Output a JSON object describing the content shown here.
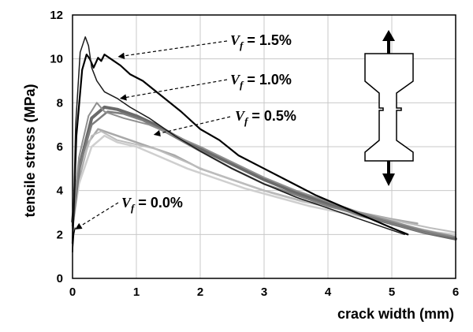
{
  "chart_data": {
    "type": "line",
    "xlabel": "crack width (mm)",
    "ylabel": "tensile stress (MPa)",
    "xlim": [
      0,
      6
    ],
    "ylim": [
      0,
      12
    ],
    "x_ticks": [
      "0",
      "1",
      "2",
      "3",
      "4",
      "5",
      "6"
    ],
    "y_ticks": [
      "0",
      "2",
      "4",
      "6",
      "8",
      "10",
      "12"
    ],
    "grid": true,
    "annotations": [
      {
        "var": "V",
        "sub": "f",
        "text": " = 1.5%",
        "target": [
          0.72,
          10.1
        ]
      },
      {
        "var": "V",
        "sub": "f",
        "text": " = 1.0%",
        "target": [
          0.75,
          8.2
        ]
      },
      {
        "var": "V",
        "sub": "f",
        "text": " = 0.5%",
        "target": [
          1.28,
          6.55
        ]
      },
      {
        "var": "V",
        "sub": "f",
        "text": " = 0.0%",
        "target": [
          0.05,
          2.25
        ]
      }
    ],
    "series": [
      {
        "group": "1.5%",
        "color": "#000000",
        "width": 2.2,
        "x": [
          0,
          0.06,
          0.15,
          0.22,
          0.27,
          0.33,
          0.4,
          0.45,
          0.5,
          0.6,
          0.75,
          0.9,
          1.1,
          1.4,
          1.7,
          2.0,
          2.3,
          2.6,
          3.0,
          3.4,
          3.8,
          4.2,
          4.6,
          5.0,
          5.25
        ],
        "y": [
          1.6,
          6.5,
          9.5,
          10.2,
          10.0,
          9.6,
          10.05,
          9.9,
          10.2,
          10.0,
          9.7,
          9.3,
          9.0,
          8.3,
          7.6,
          6.8,
          6.3,
          5.6,
          5.0,
          4.4,
          3.8,
          3.3,
          2.8,
          2.3,
          2.0
        ]
      },
      {
        "group": "1.5%",
        "color": "#1a1a1a",
        "width": 1.5,
        "x": [
          0,
          0.05,
          0.12,
          0.2,
          0.25,
          0.3,
          0.38,
          0.5,
          0.7,
          0.9,
          1.2,
          1.6,
          2.0,
          2.5,
          3.0,
          3.5,
          4.0,
          4.5,
          5.0,
          5.2
        ],
        "y": [
          1.2,
          7.0,
          10.3,
          11.0,
          10.6,
          9.6,
          9.0,
          8.5,
          8.2,
          7.8,
          7.3,
          6.5,
          5.8,
          5.0,
          4.3,
          3.7,
          3.2,
          2.7,
          2.2,
          2.0
        ]
      },
      {
        "group": "1.0%",
        "color": "#6a6a6a",
        "width": 4,
        "x": [
          0,
          0.1,
          0.3,
          0.5,
          0.7,
          1.0,
          1.3,
          1.6,
          2.0,
          2.5,
          3.0,
          3.5,
          4.0,
          4.5,
          5.0,
          5.5,
          6.0
        ],
        "y": [
          2.6,
          5.0,
          7.3,
          7.8,
          7.7,
          7.4,
          7.0,
          6.5,
          5.9,
          5.2,
          4.5,
          3.9,
          3.4,
          2.9,
          2.5,
          2.1,
          1.8
        ]
      },
      {
        "group": "1.0%",
        "color": "#7d7d7d",
        "width": 2.5,
        "x": [
          0,
          0.1,
          0.3,
          0.55,
          0.8,
          1.1,
          1.5,
          2.0,
          2.5,
          3.0,
          3.5,
          4.0,
          4.5,
          5.0,
          5.5,
          5.95
        ],
        "y": [
          2.4,
          5.0,
          7.0,
          7.6,
          7.5,
          7.2,
          6.6,
          5.8,
          5.0,
          4.3,
          3.8,
          3.3,
          2.9,
          2.5,
          2.1,
          1.9
        ]
      },
      {
        "group": "1.0%",
        "color": "#8f8f8f",
        "width": 2,
        "x": [
          0,
          0.1,
          0.25,
          0.38,
          0.5,
          0.8,
          1.2,
          1.6,
          2.0,
          2.5,
          3.0,
          3.5,
          4.0,
          4.5,
          5.0,
          5.5,
          6.0
        ],
        "y": [
          2.6,
          5.5,
          7.4,
          8.0,
          7.6,
          7.3,
          7.0,
          6.5,
          6.0,
          5.3,
          4.6,
          4.0,
          3.5,
          3.0,
          2.6,
          2.2,
          1.9
        ]
      },
      {
        "group": "0.5%",
        "color": "#a8a8a8",
        "width": 2.5,
        "x": [
          0,
          0.1,
          0.25,
          0.4,
          0.6,
          0.9,
          1.2,
          1.6,
          2.0,
          2.5,
          3.0,
          3.5,
          4.0,
          4.5,
          5.0,
          5.4
        ],
        "y": [
          2.5,
          4.5,
          6.2,
          6.8,
          6.6,
          6.3,
          6.0,
          5.6,
          5.0,
          4.5,
          4.0,
          3.6,
          3.3,
          3.0,
          2.7,
          2.5
        ]
      },
      {
        "group": "0.5%",
        "color": "#bdbdbd",
        "width": 2,
        "x": [
          0,
          0.1,
          0.3,
          0.45,
          0.7,
          1.0,
          1.3,
          1.7,
          2.1,
          2.6,
          3.1,
          3.6,
          4.1,
          4.6,
          5.1,
          5.6,
          6.0
        ],
        "y": [
          2.4,
          4.8,
          6.5,
          6.7,
          6.3,
          6.1,
          5.9,
          5.4,
          4.9,
          4.4,
          3.9,
          3.5,
          3.2,
          2.9,
          2.6,
          2.3,
          2.1
        ]
      },
      {
        "group": "0.5%",
        "color": "#cfcfcf",
        "width": 2.5,
        "x": [
          0,
          0.1,
          0.3,
          0.5,
          0.7,
          1.0,
          1.4,
          1.8,
          2.2,
          2.7,
          3.2,
          3.7,
          4.2,
          4.7,
          5.2,
          5.7,
          6.0
        ],
        "y": [
          2.3,
          4.3,
          6.0,
          6.5,
          6.2,
          6.0,
          5.5,
          5.0,
          4.6,
          4.1,
          3.7,
          3.3,
          3.0,
          2.7,
          2.4,
          2.1,
          2.0
        ]
      },
      {
        "group": "0.0%",
        "color": "#000000",
        "width": 1.2,
        "x": [
          0,
          0.02,
          0.04
        ],
        "y": [
          1.2,
          2.0,
          2.3
        ]
      }
    ]
  }
}
